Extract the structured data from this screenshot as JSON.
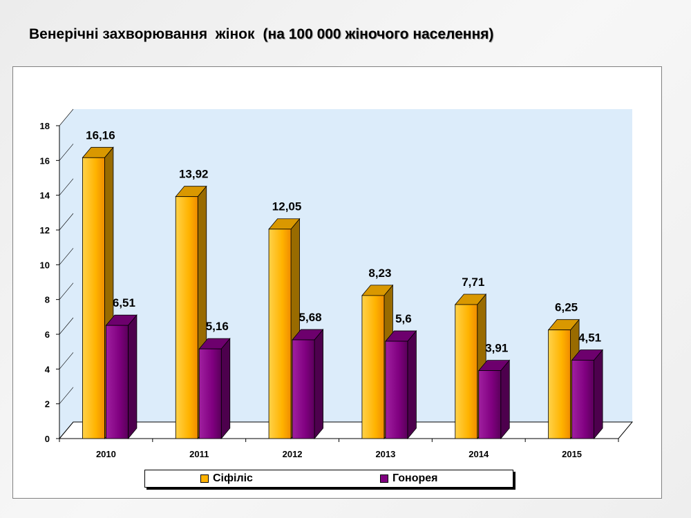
{
  "title": {
    "main": "Венерічні захворювання  жінок",
    "sub": "(на 100 000 жіночого населення)"
  },
  "colors": {
    "syphilis": "#FFB300",
    "gonorrhea": "#800080",
    "wall": "#dcecfa"
  },
  "chart_data": {
    "type": "bar",
    "categories": [
      "2010",
      "2011",
      "2012",
      "2013",
      "2014",
      "2015"
    ],
    "series": [
      {
        "name": "Сіфіліс",
        "values": [
          16.16,
          13.92,
          12.05,
          8.23,
          7.71,
          6.25
        ],
        "labels": [
          "16,16",
          "13,92",
          "12,05",
          "8,23",
          "7,71",
          "6,25"
        ]
      },
      {
        "name": "Гонорея",
        "values": [
          6.51,
          5.16,
          5.68,
          5.6,
          3.91,
          4.51
        ],
        "labels": [
          "6,51",
          "5,16",
          "5,68",
          "5,6",
          "3,91",
          "4,51"
        ]
      }
    ],
    "ylim": [
      0,
      18
    ],
    "yticks": [
      "0",
      "2",
      "4",
      "6",
      "8",
      "10",
      "12",
      "14",
      "16",
      "18"
    ],
    "legend": "bottom",
    "grid": false
  }
}
